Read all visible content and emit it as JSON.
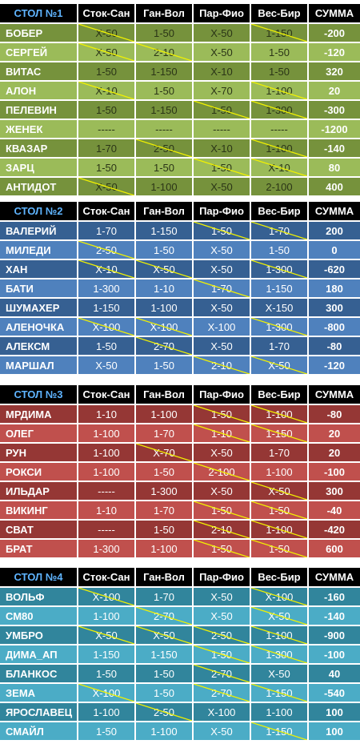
{
  "colors": {
    "header_bg": "#000000",
    "header_title": "#5fb4ff",
    "strike_line": "#f2f200",
    "table1_dark": "#76923c",
    "table1_light": "#9bbb59",
    "table2_dark": "#366092",
    "table2_light": "#4f81bd",
    "table3_dark": "#953735",
    "table3_light": "#c0504d",
    "table4_dark": "#31859c",
    "table4_light": "#4bacc6"
  },
  "columns": [
    "Сток-Сан",
    "Ган-Вол",
    "Пар-Фио",
    "Вес-Бир",
    "СУММА"
  ],
  "tables": [
    {
      "title": "СТОЛ №1",
      "rows": [
        {
          "name": "БОБЕР",
          "cells": [
            "Х-50",
            "1-50",
            "Х-50",
            "1-150"
          ],
          "strike": [
            true,
            false,
            false,
            true
          ],
          "sum": "-200"
        },
        {
          "name": "СЕРГЕЙ",
          "cells": [
            "Х-50",
            "2-10",
            "Х-50",
            "1-50"
          ],
          "strike": [
            true,
            true,
            false,
            false
          ],
          "sum": "-120"
        },
        {
          "name": "ВИТАС",
          "cells": [
            "1-50",
            "1-150",
            "Х-10",
            "1-50"
          ],
          "strike": [
            false,
            false,
            false,
            false
          ],
          "sum": "320"
        },
        {
          "name": "АЛОН",
          "cells": [
            "Х-10",
            "1-50",
            "Х-70",
            "1-100"
          ],
          "strike": [
            true,
            false,
            false,
            true
          ],
          "sum": "20"
        },
        {
          "name": "ПЕЛЕВИН",
          "cells": [
            "1-50",
            "1-150",
            "1-50",
            "1-300"
          ],
          "strike": [
            false,
            false,
            true,
            true
          ],
          "sum": "-300"
        },
        {
          "name": "ЖЕНЕК",
          "cells": [
            "-----",
            "-----",
            "-----",
            "-----"
          ],
          "strike": [
            false,
            false,
            false,
            false
          ],
          "sum": "-1200"
        },
        {
          "name": "КВАЗАР",
          "cells": [
            "1-70",
            "2-50",
            "Х-10",
            "1-100"
          ],
          "strike": [
            false,
            true,
            false,
            true
          ],
          "sum": "-140"
        },
        {
          "name": "ЗАРЦ",
          "cells": [
            "1-50",
            "1-50",
            "1-50",
            "Х-10"
          ],
          "strike": [
            false,
            false,
            true,
            true
          ],
          "sum": "80"
        },
        {
          "name": "АНТИДОТ",
          "cells": [
            "Х-50",
            "1-100",
            "Х-50",
            "2-100"
          ],
          "strike": [
            true,
            false,
            false,
            false
          ],
          "sum": "400"
        }
      ]
    },
    {
      "title": "СТОЛ №2",
      "rows": [
        {
          "name": "ВАЛЕРИЙ",
          "cells": [
            "1-70",
            "1-150",
            "1-50",
            "1-70"
          ],
          "strike": [
            false,
            false,
            true,
            true
          ],
          "sum": "200"
        },
        {
          "name": "МИЛЕДИ",
          "cells": [
            "2-50",
            "1-50",
            "Х-50",
            "1-50"
          ],
          "strike": [
            true,
            false,
            false,
            false
          ],
          "sum": "0"
        },
        {
          "name": "ХАН",
          "cells": [
            "Х-10",
            "Х-50",
            "Х-50",
            "1-300"
          ],
          "strike": [
            true,
            true,
            false,
            true
          ],
          "sum": "-620"
        },
        {
          "name": "БАТИ",
          "cells": [
            "1-300",
            "1-10",
            "1-70",
            "1-150"
          ],
          "strike": [
            false,
            false,
            true,
            false
          ],
          "sum": "180"
        },
        {
          "name": "ШУМАХЕР",
          "cells": [
            "1-150",
            "1-100",
            "Х-50",
            "Х-150"
          ],
          "strike": [
            false,
            false,
            false,
            false
          ],
          "sum": "300"
        },
        {
          "name": "АЛЕНОЧКА",
          "cells": [
            "Х-100",
            "Х-100",
            "Х-100",
            "1-300"
          ],
          "strike": [
            true,
            true,
            false,
            true
          ],
          "sum": "-800"
        },
        {
          "name": "АЛЕКСМ",
          "cells": [
            "1-50",
            "2-70",
            "Х-50",
            "1-70"
          ],
          "strike": [
            false,
            true,
            false,
            false
          ],
          "sum": "-80"
        },
        {
          "name": "МАРШАЛ",
          "cells": [
            "Х-50",
            "1-50",
            "2-10",
            "Х-50"
          ],
          "strike": [
            false,
            false,
            true,
            true
          ],
          "sum": "-120"
        }
      ]
    },
    {
      "title": "СТОЛ №3",
      "rows": [
        {
          "name": "МРДИМА",
          "cells": [
            "1-10",
            "1-100",
            "1-50",
            "1-100"
          ],
          "strike": [
            false,
            false,
            true,
            true
          ],
          "sum": "-80"
        },
        {
          "name": "ОЛЕГ",
          "cells": [
            "1-100",
            "1-70",
            "1-10",
            "1-150"
          ],
          "strike": [
            false,
            false,
            true,
            true
          ],
          "sum": "20"
        },
        {
          "name": "РУН",
          "cells": [
            "1-100",
            "Х-70",
            "Х-50",
            "1-70"
          ],
          "strike": [
            false,
            true,
            false,
            false
          ],
          "sum": "20"
        },
        {
          "name": "РОКСИ",
          "cells": [
            "1-100",
            "1-50",
            "2-100",
            "1-100"
          ],
          "strike": [
            false,
            false,
            true,
            false
          ],
          "sum": "-100"
        },
        {
          "name": "ИЛЬДАР",
          "cells": [
            "-----",
            "1-300",
            "Х-50",
            "Х-50"
          ],
          "strike": [
            false,
            false,
            false,
            true
          ],
          "sum": "300"
        },
        {
          "name": "ВИКИНГ",
          "cells": [
            "1-10",
            "1-70",
            "1-50",
            "1-50"
          ],
          "strike": [
            false,
            false,
            true,
            true
          ],
          "sum": "-40"
        },
        {
          "name": "СВАТ",
          "cells": [
            "-----",
            "1-50",
            "2-10",
            "1-100"
          ],
          "strike": [
            false,
            false,
            true,
            true
          ],
          "sum": "-420"
        },
        {
          "name": "БРАТ",
          "cells": [
            "1-300",
            "1-100",
            "1-50",
            "1-50"
          ],
          "strike": [
            false,
            false,
            true,
            true
          ],
          "sum": "600"
        }
      ]
    },
    {
      "title": "СТОЛ №4",
      "rows": [
        {
          "name": "ВОЛЬФ",
          "cells": [
            "Х-100",
            "1-70",
            "Х-50",
            "Х-100"
          ],
          "strike": [
            true,
            false,
            false,
            true
          ],
          "sum": "-160"
        },
        {
          "name": "СМ80",
          "cells": [
            "1-100",
            "2-70",
            "Х-50",
            "Х-50"
          ],
          "strike": [
            false,
            true,
            false,
            true
          ],
          "sum": "-140"
        },
        {
          "name": "УМБРО",
          "cells": [
            "Х-50",
            "Х-50",
            "2-50",
            "1-100"
          ],
          "strike": [
            true,
            true,
            true,
            true
          ],
          "sum": "-900"
        },
        {
          "name": "ДИМА_АП",
          "cells": [
            "1-150",
            "1-150",
            "1-50",
            "1-300"
          ],
          "strike": [
            false,
            false,
            true,
            true
          ],
          "sum": "-100"
        },
        {
          "name": "БЛАНКОС",
          "cells": [
            "1-50",
            "1-50",
            "2-70",
            "Х-50"
          ],
          "strike": [
            false,
            false,
            true,
            false
          ],
          "sum": "40"
        },
        {
          "name": "ЗЕМА",
          "cells": [
            "Х-100",
            "1-50",
            "2-70",
            "1-150"
          ],
          "strike": [
            true,
            false,
            true,
            true
          ],
          "sum": "-540"
        },
        {
          "name": "ЯРОСЛАВЕЦ",
          "cells": [
            "1-100",
            "2-50",
            "Х-100",
            "1-100"
          ],
          "strike": [
            false,
            true,
            false,
            false
          ],
          "sum": "100"
        },
        {
          "name": "СМАЙЛ",
          "cells": [
            "1-50",
            "1-100",
            "Х-50",
            "1-150"
          ],
          "strike": [
            false,
            false,
            false,
            true
          ],
          "sum": "100"
        }
      ]
    }
  ]
}
